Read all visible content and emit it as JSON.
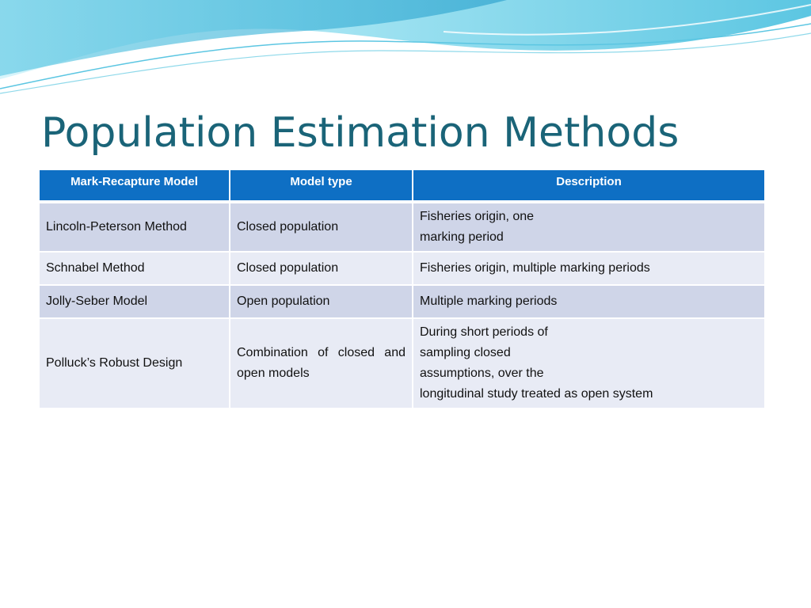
{
  "slide": {
    "title": "Population Estimation Methods"
  },
  "table": {
    "headers": [
      "Mark-Recapture Model",
      "Model type",
      "Description"
    ],
    "rows": [
      {
        "model": "Lincoln-Peterson Method",
        "type": "Closed population",
        "description": [
          "Fisheries origin, one",
          "marking period"
        ]
      },
      {
        "model": "Schnabel Method",
        "type": "Closed population",
        "description": [
          "Fisheries origin, multiple marking periods"
        ]
      },
      {
        "model": "Jolly-Seber Model",
        "type": "Open population",
        "description": [
          "Multiple marking periods"
        ]
      },
      {
        "model": "Polluck’s Robust Design",
        "type": "Combination of closed and open models",
        "description": [
          "During short periods of",
          "sampling closed",
          "assumptions, over the",
          "longitudinal study treated as open system"
        ]
      }
    ]
  },
  "colors": {
    "title": "#1a6478",
    "header_bg": "#0e6fc4",
    "row_dark": "#cfd5e8",
    "row_light": "#e8ebf5",
    "wave_light": "#b8ecf6",
    "wave_mid": "#7fd8ec",
    "wave_dark": "#3fb4d6"
  }
}
